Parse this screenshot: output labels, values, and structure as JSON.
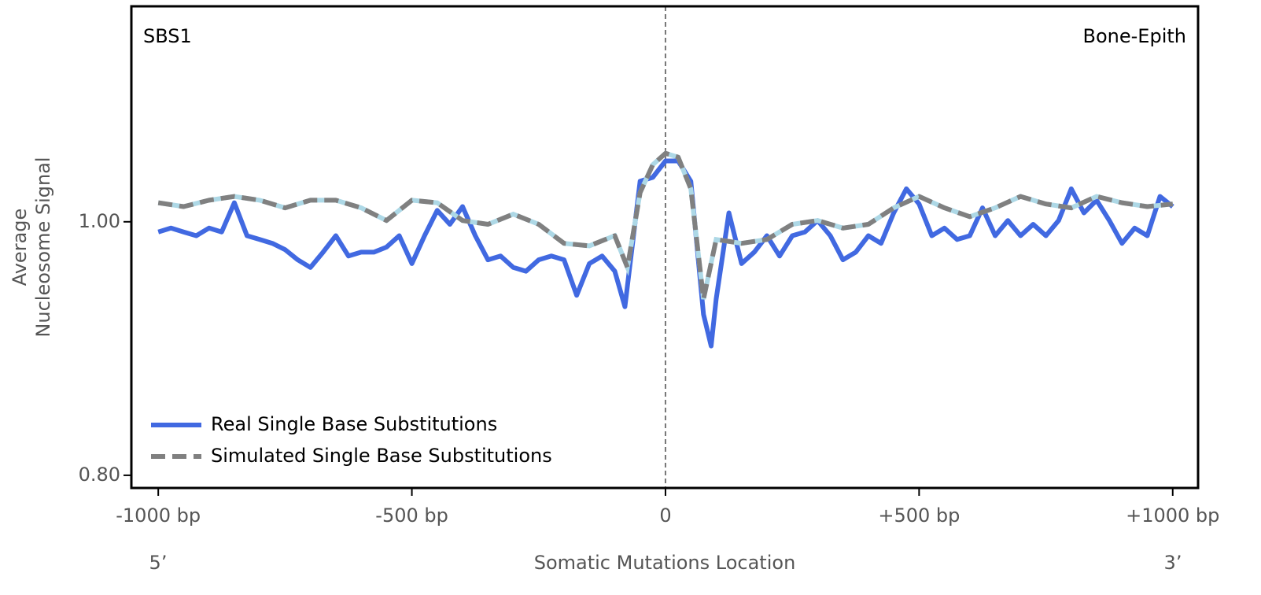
{
  "chart_data": {
    "type": "line",
    "annotations": {
      "top_left": "SBS1",
      "top_right": "Bone-Epith",
      "left_end": "5’",
      "right_end": "3’"
    },
    "xlabel": "Somatic Mutations Location",
    "ylabel": [
      "Average",
      "Nucleosome Signal"
    ],
    "xlim": [
      -1053,
      1050
    ],
    "ylim": [
      0.79,
      1.17
    ],
    "xticks": [
      {
        "value": -1000,
        "label": "-1000 bp"
      },
      {
        "value": -500,
        "label": "-500 bp"
      },
      {
        "value": 0,
        "label": "0"
      },
      {
        "value": 500,
        "label": "+500 bp"
      },
      {
        "value": 1000,
        "label": "+1000 bp"
      }
    ],
    "yticks": [
      {
        "value": 1.0,
        "label": "1.00"
      },
      {
        "value": 0.8,
        "label": "0.80"
      }
    ],
    "vline": 0,
    "legend": "lower left",
    "series": [
      {
        "name": "Real Single Base Substitutions",
        "color": "#4169e1",
        "x": [
          -1000,
          -975,
          -950,
          -925,
          -900,
          -875,
          -850,
          -825,
          -800,
          -775,
          -750,
          -725,
          -700,
          -675,
          -650,
          -625,
          -600,
          -575,
          -550,
          -525,
          -500,
          -475,
          -450,
          -425,
          -400,
          -375,
          -350,
          -325,
          -300,
          -275,
          -250,
          -225,
          -200,
          -175,
          -150,
          -125,
          -100,
          -80,
          -50,
          -25,
          0,
          25,
          50,
          75,
          90,
          100,
          125,
          150,
          175,
          200,
          225,
          250,
          275,
          300,
          325,
          350,
          375,
          400,
          425,
          450,
          475,
          500,
          525,
          550,
          575,
          600,
          625,
          650,
          675,
          700,
          725,
          750,
          775,
          800,
          825,
          850,
          875,
          900,
          925,
          950,
          975,
          1000
        ],
        "values": [
          0.992,
          0.995,
          0.992,
          0.989,
          0.995,
          0.992,
          1.015,
          0.989,
          0.986,
          0.983,
          0.978,
          0.97,
          0.964,
          0.976,
          0.989,
          0.973,
          0.976,
          0.976,
          0.98,
          0.989,
          0.967,
          0.989,
          1.009,
          0.998,
          1.012,
          0.989,
          0.97,
          0.973,
          0.964,
          0.961,
          0.97,
          0.973,
          0.97,
          0.942,
          0.967,
          0.973,
          0.961,
          0.933,
          1.032,
          1.035,
          1.048,
          1.048,
          1.032,
          0.927,
          0.902,
          0.939,
          1.007,
          0.967,
          0.976,
          0.989,
          0.973,
          0.989,
          0.992,
          1.001,
          0.989,
          0.97,
          0.976,
          0.989,
          0.983,
          1.007,
          1.026,
          1.014,
          0.989,
          0.995,
          0.986,
          0.989,
          1.011,
          0.989,
          1.001,
          0.989,
          0.998,
          0.989,
          1.001,
          1.026,
          1.007,
          1.017,
          1.001,
          0.983,
          0.995,
          0.989,
          1.02,
          1.012
        ]
      },
      {
        "name": "Simulated Single Base Substitutions",
        "color": "#808080",
        "underlay_color": "#add8e6",
        "dashed": true,
        "x": [
          -1000,
          -950,
          -900,
          -850,
          -800,
          -750,
          -700,
          -650,
          -600,
          -550,
          -500,
          -450,
          -400,
          -350,
          -300,
          -250,
          -200,
          -150,
          -100,
          -75,
          -50,
          -25,
          0,
          25,
          50,
          75,
          100,
          150,
          200,
          250,
          300,
          350,
          400,
          450,
          500,
          550,
          600,
          650,
          700,
          750,
          800,
          850,
          900,
          950,
          1000
        ],
        "values": [
          1.015,
          1.012,
          1.017,
          1.02,
          1.017,
          1.011,
          1.017,
          1.017,
          1.011,
          1.001,
          1.017,
          1.015,
          1.001,
          0.998,
          1.006,
          0.998,
          0.983,
          0.981,
          0.989,
          0.964,
          1.023,
          1.045,
          1.054,
          1.051,
          1.026,
          0.939,
          0.986,
          0.983,
          0.986,
          0.998,
          1.001,
          0.995,
          0.998,
          1.011,
          1.02,
          1.011,
          1.004,
          1.011,
          1.02,
          1.014,
          1.011,
          1.02,
          1.015,
          1.012,
          1.014
        ]
      }
    ]
  }
}
